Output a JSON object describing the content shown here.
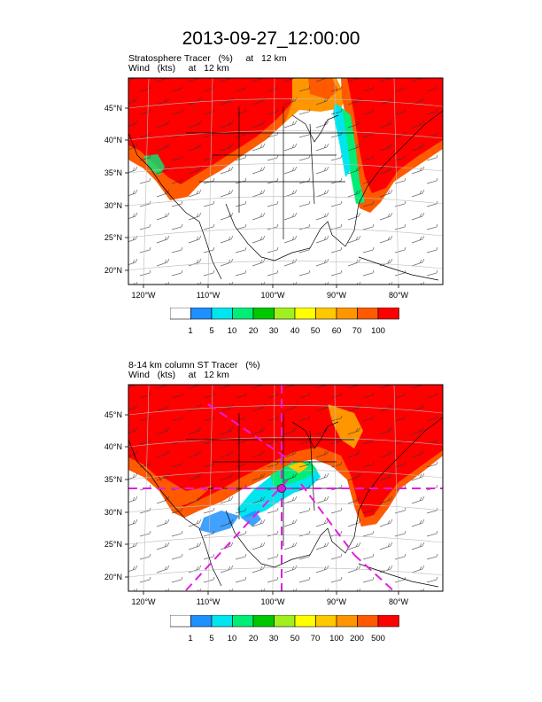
{
  "title": "2013-09-27_12:00:00",
  "panels": [
    {
      "subtitle1": "Stratosphere Tracer   (%)     at   12 km",
      "subtitle2": "Wind   (kts)     at   12 km",
      "lat_labels": [
        "45°N",
        "40°N",
        "35°N",
        "30°N",
        "25°N",
        "20°N"
      ],
      "lon_labels": [
        "120°W",
        "110°W",
        "100°W",
        "90°W",
        "80°W"
      ],
      "colorbar_labels": [
        "1",
        "5",
        "10",
        "20",
        "30",
        "40",
        "50",
        "60",
        "70",
        "100"
      ]
    },
    {
      "subtitle1": "8-14 km column ST Tracer   (%)",
      "subtitle2": "Wind   (kts)     at   12 km",
      "lat_labels": [
        "45°N",
        "40°N",
        "35°N",
        "30°N",
        "25°N",
        "20°N"
      ],
      "lon_labels": [
        "120°W",
        "110°W",
        "100°W",
        "90°W",
        "80°W"
      ],
      "colorbar_labels": [
        "1",
        "5",
        "10",
        "20",
        "30",
        "50",
        "70",
        "100",
        "200",
        "500"
      ]
    }
  ],
  "colors": {
    "c0": "#ffffff",
    "c1": "#1e90ff",
    "c2": "#00e5ee",
    "c3": "#00ee76",
    "c4": "#00c800",
    "c5": "#a0f020",
    "c6": "#ffff00",
    "c7": "#ffc800",
    "c8": "#ff9600",
    "c9": "#ff5a00",
    "c10": "#ff0000"
  }
}
